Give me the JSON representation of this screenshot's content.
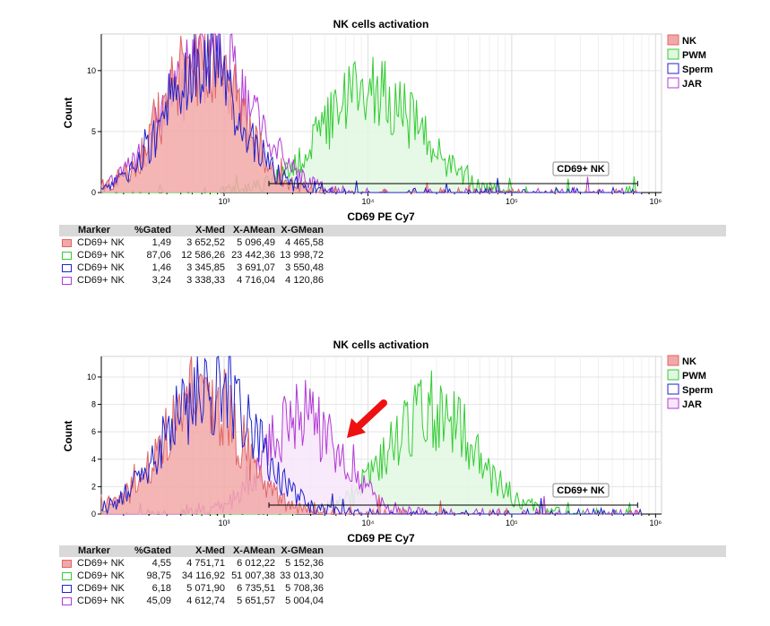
{
  "panels": [
    {
      "title": "NK cells activation",
      "xlabel": "CD69 PE Cy7",
      "ylabel": "Count",
      "gate_label": "CD69+ NK",
      "arrow": false,
      "stats_headers": [
        "Marker",
        "%Gated",
        "X-Med",
        "X-AMean",
        "X-GMean"
      ],
      "stats_rows": [
        {
          "marker": "CD69+ NK",
          "gated": "1,49",
          "xmed": "3 652,52",
          "xamean": "5 096,49",
          "xgmean": "4 465,58",
          "color": "#e06666"
        },
        {
          "marker": "CD69+ NK",
          "gated": "87,06",
          "xmed": "12 586,26",
          "xamean": "23 442,36",
          "xgmean": "13 998,72",
          "color": "#33cc33"
        },
        {
          "marker": "CD69+ NK",
          "gated": "1,46",
          "xmed": "3 345,85",
          "xamean": "3 691,07",
          "xgmean": "3 550,48",
          "color": "#2222cc"
        },
        {
          "marker": "CD69+ NK",
          "gated": "3,24",
          "xmed": "3 338,33",
          "xamean": "4 716,04",
          "xgmean": "4 120,86",
          "color": "#b23ad6"
        }
      ]
    },
    {
      "title": "NK cells activation",
      "xlabel": "CD69 PE Cy7",
      "ylabel": "Count",
      "gate_label": "CD69+ NK",
      "arrow": true,
      "stats_headers": [
        "Marker",
        "%Gated",
        "X-Med",
        "X-AMean",
        "X-GMean"
      ],
      "stats_rows": [
        {
          "marker": "CD69+ NK",
          "gated": "4,55",
          "xmed": "4 751,71",
          "xamean": "6 012,22",
          "xgmean": "5 152,36",
          "color": "#e06666"
        },
        {
          "marker": "CD69+ NK",
          "gated": "98,75",
          "xmed": "34 116,92",
          "xamean": "51 007,38",
          "xgmean": "33 013,30",
          "color": "#33cc33"
        },
        {
          "marker": "CD69+ NK",
          "gated": "6,18",
          "xmed": "5 071,90",
          "xamean": "6 735,51",
          "xgmean": "5 708,36",
          "color": "#2222cc"
        },
        {
          "marker": "CD69+ NK",
          "gated": "45,09",
          "xmed": "4 612,74",
          "xamean": "5 651,57",
          "xgmean": "5 004,04",
          "color": "#b23ad6"
        }
      ]
    }
  ],
  "chart_data": [
    {
      "type": "area",
      "title": "NK cells activation",
      "xlabel": "CD69 PE Cy7",
      "ylabel": "Count",
      "x_scale": "log",
      "xlim": [
        140,
        1100000
      ],
      "ylim": [
        0,
        13
      ],
      "x_ticks": [
        {
          "v": 1000,
          "label": "10³"
        },
        {
          "v": 10000,
          "label": "10⁴"
        },
        {
          "v": 100000,
          "label": "10⁵"
        },
        {
          "v": 1000000,
          "label": "10⁶"
        }
      ],
      "y_ticks": [
        0,
        5,
        10
      ],
      "grid": true,
      "legend_position": "right",
      "gate": {
        "label": "CD69+ NK",
        "x_range": [
          2050,
          750000
        ]
      },
      "series": [
        {
          "name": "NK",
          "color": "#e06666",
          "fill": "#f2a8a8",
          "peak_x": 700,
          "log_sd": 0.26,
          "peak": 11.5
        },
        {
          "name": "PWM",
          "color": "#33cc33",
          "fill": "#e2f7e2",
          "peak_x": 10500,
          "log_sd": 0.33,
          "peak": 8.5
        },
        {
          "name": "Sperm",
          "color": "#2222cc",
          "fill": "none",
          "peak_x": 720,
          "log_sd": 0.26,
          "peak": 11.0
        },
        {
          "name": "JAR",
          "color": "#b23ad6",
          "fill": "none",
          "peak_x": 800,
          "log_sd": 0.3,
          "peak": 11.2
        }
      ]
    },
    {
      "type": "area",
      "title": "NK cells activation",
      "xlabel": "CD69 PE Cy7",
      "ylabel": "Count",
      "x_scale": "log",
      "xlim": [
        140,
        1100000
      ],
      "ylim": [
        0,
        11.5
      ],
      "x_ticks": [
        {
          "v": 1000,
          "label": "10³"
        },
        {
          "v": 10000,
          "label": "10⁴"
        },
        {
          "v": 100000,
          "label": "10⁵"
        },
        {
          "v": 1000000,
          "label": "10⁶"
        }
      ],
      "y_ticks": [
        0,
        2,
        4,
        6,
        8,
        10
      ],
      "grid": true,
      "legend_position": "right",
      "gate": {
        "label": "CD69+ NK",
        "x_range": [
          2050,
          750000
        ]
      },
      "series": [
        {
          "name": "NK",
          "color": "#e06666",
          "fill": "#f2a8a8",
          "peak_x": 700,
          "log_sd": 0.27,
          "peak": 9.0
        },
        {
          "name": "PWM",
          "color": "#33cc33",
          "fill": "#e2f7e2",
          "peak_x": 28000,
          "log_sd": 0.3,
          "peak": 7.5
        },
        {
          "name": "Sperm",
          "color": "#2222cc",
          "fill": "none",
          "peak_x": 800,
          "log_sd": 0.3,
          "peak": 9.5
        },
        {
          "name": "JAR",
          "color": "#b23ad6",
          "fill": "#f7e6fa",
          "peak_x": 3600,
          "log_sd": 0.26,
          "peak": 7.0
        }
      ]
    }
  ]
}
